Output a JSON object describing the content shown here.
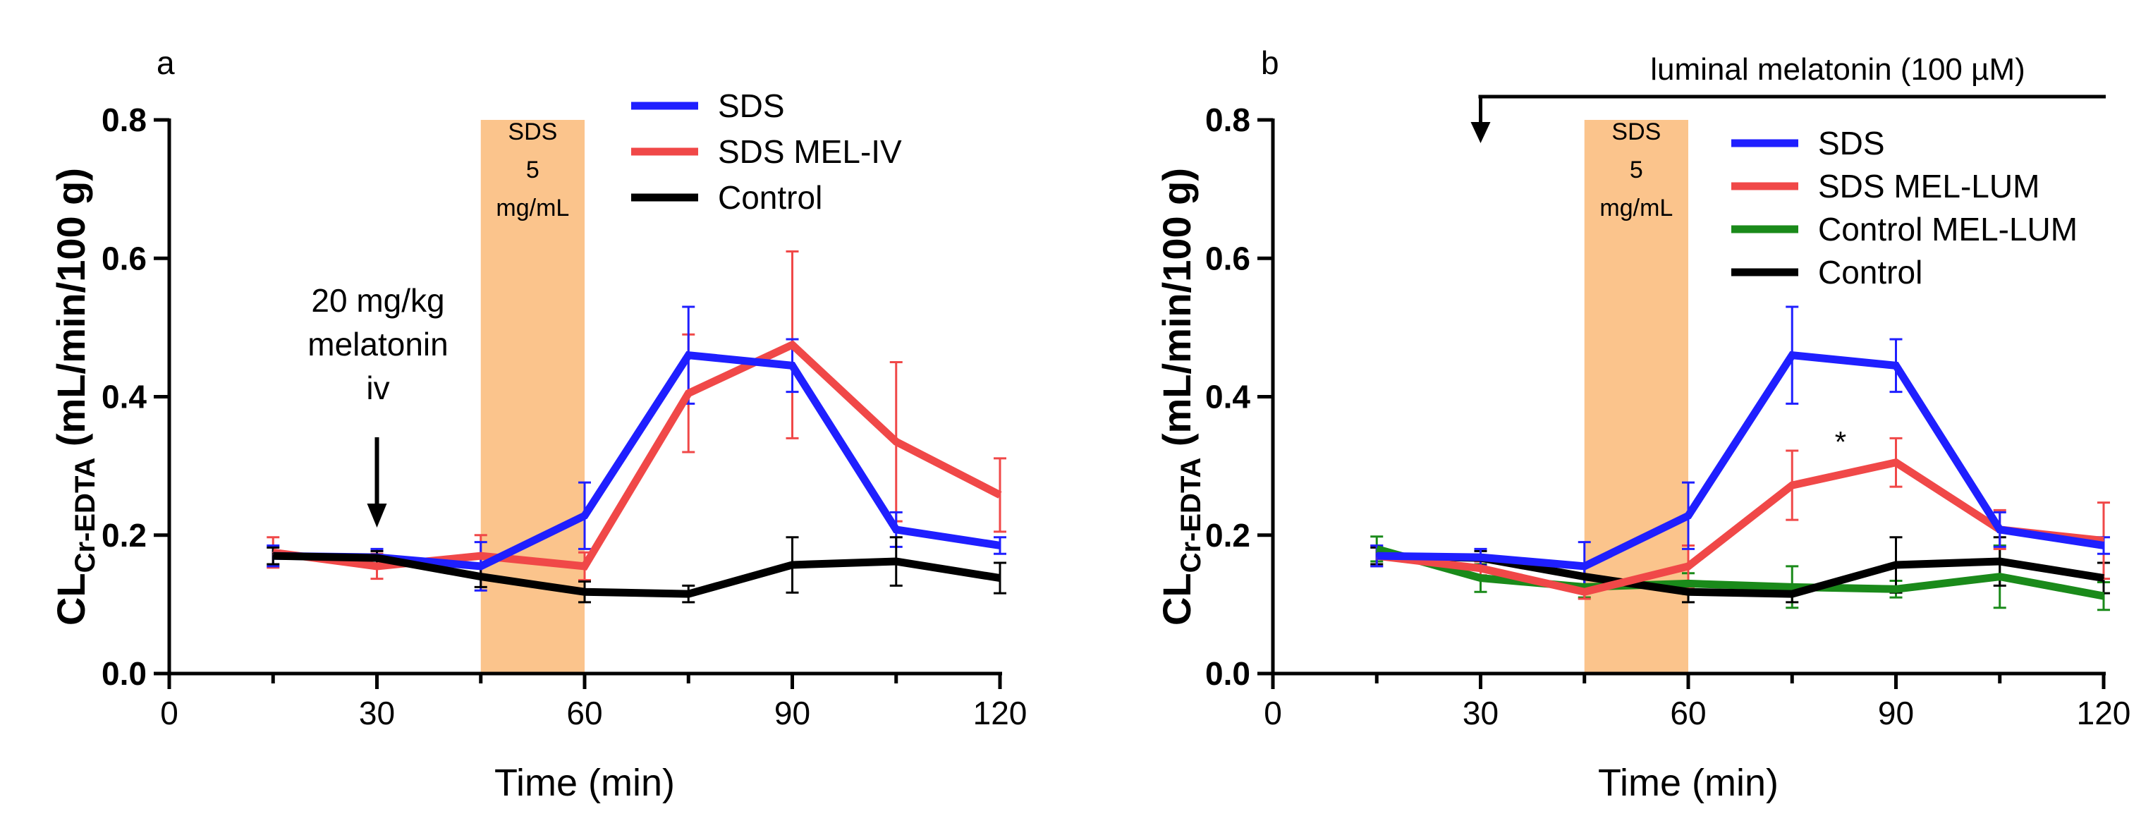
{
  "chart_data": [
    {
      "panel_label": "a",
      "type": "line",
      "xlabel": "Time (min)",
      "ylabel_main": "CL",
      "ylabel_sub": "Cr-EDTA",
      "ylabel_unit": " (mL/min/100 g)",
      "xlim": [
        0,
        120
      ],
      "ylim": [
        0,
        0.8
      ],
      "x_ticks": [
        "0",
        "30",
        "60",
        "90",
        "120"
      ],
      "y_ticks": [
        "0.0",
        "0.2",
        "0.4",
        "0.6",
        "0.8"
      ],
      "shaded_interval": [
        45,
        60
      ],
      "shaded_text": [
        "SDS",
        "5",
        "mg/mL"
      ],
      "shade_color": "#fbc48c",
      "annotation": {
        "lines": [
          "20 mg/kg",
          "melatonin",
          "iv"
        ],
        "arrow_x": 30
      },
      "x": [
        15,
        30,
        45,
        60,
        75,
        90,
        105,
        120
      ],
      "series": [
        {
          "name": "SDS MEL-IV",
          "color": "#f04848",
          "values": [
            0.175,
            0.155,
            0.17,
            0.155,
            0.405,
            0.475,
            0.335,
            0.258
          ],
          "errors": [
            0.022,
            0.018,
            0.03,
            0.02,
            0.085,
            0.135,
            0.115,
            0.053
          ]
        },
        {
          "name": "SDS",
          "color": "#1f1fff",
          "values": [
            0.17,
            0.168,
            0.155,
            0.228,
            0.46,
            0.445,
            0.208,
            0.185
          ],
          "errors": [
            0.015,
            0.012,
            0.035,
            0.048,
            0.07,
            0.038,
            0.025,
            0.012
          ]
        },
        {
          "name": "Control",
          "color": "#000000",
          "values": [
            0.17,
            0.167,
            0.14,
            0.118,
            0.115,
            0.157,
            0.162,
            0.138
          ],
          "errors": [
            0.012,
            0.01,
            0.015,
            0.015,
            0.012,
            0.04,
            0.035,
            0.022
          ]
        }
      ],
      "legend": [
        "SDS",
        "SDS MEL-IV",
        "Control"
      ]
    },
    {
      "panel_label": "b",
      "type": "line",
      "xlabel": "Time (min)",
      "ylabel_main": "CL",
      "ylabel_sub": "Cr-EDTA",
      "ylabel_unit": " (mL/min/100 g)",
      "xlim": [
        0,
        120
      ],
      "ylim": [
        0,
        0.8
      ],
      "x_ticks": [
        "0",
        "30",
        "60",
        "90",
        "120"
      ],
      "y_ticks": [
        "0.0",
        "0.2",
        "0.4",
        "0.6",
        "0.8"
      ],
      "shaded_interval": [
        45,
        60
      ],
      "shaded_text": [
        "SDS",
        "5",
        "mg/mL"
      ],
      "shade_color": "#fbc48c",
      "top_annotation": {
        "text": "luminal melatonin (100 µM)",
        "arrow_x": 30
      },
      "significance": {
        "text": "*",
        "x": 82,
        "y": 0.31
      },
      "x": [
        15,
        30,
        45,
        60,
        75,
        90,
        105,
        120
      ],
      "series": [
        {
          "name": "Control MEL-LUM",
          "color": "#1a8a1a",
          "values": [
            0.18,
            0.138,
            0.125,
            0.13,
            0.125,
            0.122,
            0.14,
            0.112
          ],
          "errors": [
            0.018,
            0.02,
            0.015,
            0.015,
            0.03,
            0.012,
            0.045,
            0.02
          ]
        },
        {
          "name": "Control",
          "color": "#000000",
          "values": [
            0.17,
            0.167,
            0.14,
            0.118,
            0.115,
            0.157,
            0.162,
            0.138
          ],
          "errors": [
            0.012,
            0.01,
            0.015,
            0.015,
            0.012,
            0.04,
            0.035,
            0.022
          ]
        },
        {
          "name": "SDS MEL-LUM",
          "color": "#f04848",
          "values": [
            0.17,
            0.152,
            0.118,
            0.155,
            0.272,
            0.305,
            0.208,
            0.192
          ],
          "errors": [
            0.015,
            0.01,
            0.01,
            0.03,
            0.05,
            0.035,
            0.028,
            0.055
          ]
        },
        {
          "name": "SDS",
          "color": "#1f1fff",
          "values": [
            0.17,
            0.168,
            0.155,
            0.228,
            0.46,
            0.445,
            0.208,
            0.185
          ],
          "errors": [
            0.015,
            0.012,
            0.035,
            0.048,
            0.07,
            0.038,
            0.025,
            0.012
          ]
        }
      ],
      "legend": [
        "SDS",
        "SDS MEL-LUM",
        "Control MEL-LUM",
        "Control"
      ]
    }
  ]
}
